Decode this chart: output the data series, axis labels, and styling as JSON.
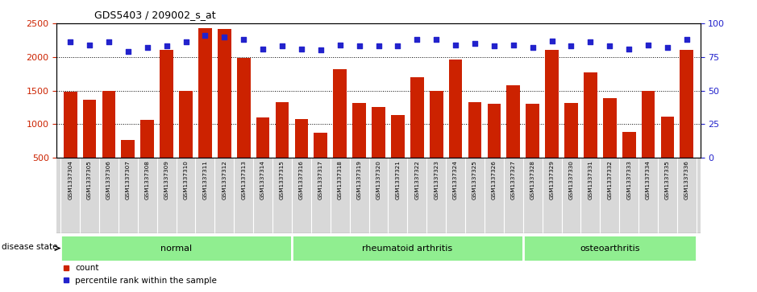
{
  "title": "GDS5403 / 209002_s_at",
  "samples": [
    "GSM1337304",
    "GSM1337305",
    "GSM1337306",
    "GSM1337307",
    "GSM1337308",
    "GSM1337309",
    "GSM1337310",
    "GSM1337311",
    "GSM1337312",
    "GSM1337313",
    "GSM1337314",
    "GSM1337315",
    "GSM1337316",
    "GSM1337317",
    "GSM1337318",
    "GSM1337319",
    "GSM1337320",
    "GSM1337321",
    "GSM1337322",
    "GSM1337323",
    "GSM1337324",
    "GSM1337325",
    "GSM1337326",
    "GSM1337327",
    "GSM1337328",
    "GSM1337329",
    "GSM1337330",
    "GSM1337331",
    "GSM1337332",
    "GSM1337333",
    "GSM1337334",
    "GSM1337335",
    "GSM1337336"
  ],
  "counts": [
    1480,
    1360,
    1500,
    760,
    1060,
    2110,
    1500,
    2430,
    2420,
    1980,
    1100,
    1330,
    1080,
    870,
    1820,
    1310,
    1250,
    1140,
    1700,
    1500,
    1960,
    1330,
    1300,
    1580,
    1300,
    2110,
    1310,
    1770,
    1390,
    880,
    1500,
    1110,
    2110
  ],
  "percentile_ranks": [
    86,
    84,
    86,
    79,
    82,
    83,
    86,
    91,
    90,
    88,
    81,
    83,
    81,
    80,
    84,
    83,
    83,
    83,
    88,
    88,
    84,
    85,
    83,
    84,
    82,
    87,
    83,
    86,
    83,
    81,
    84,
    82,
    88
  ],
  "group_starts": [
    0,
    12,
    24
  ],
  "group_ends": [
    12,
    24,
    33
  ],
  "group_labels": [
    "normal",
    "rheumatoid arthritis",
    "osteoarthritis"
  ],
  "group_color": "#90ee90",
  "bar_color": "#cc2200",
  "dot_color": "#2222cc",
  "ylim_left": [
    500,
    2500
  ],
  "ylim_right": [
    0,
    100
  ],
  "yticks_left": [
    500,
    1000,
    1500,
    2000,
    2500
  ],
  "yticks_right": [
    0,
    25,
    50,
    75,
    100
  ],
  "grid_values": [
    1000,
    1500,
    2000
  ],
  "label_bg": "#d8d8d8",
  "background_color": "#ffffff"
}
